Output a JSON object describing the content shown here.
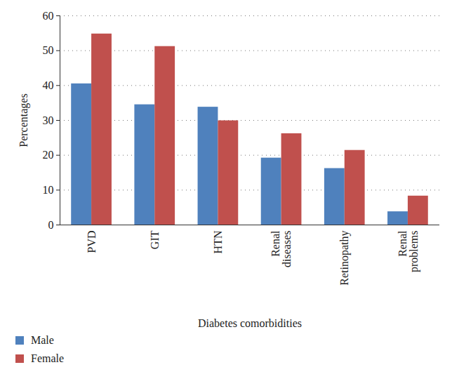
{
  "chart_data": {
    "type": "bar",
    "x_label": "Diabetes comorbidities",
    "y_label": "Percentages",
    "categories": [
      "PVD",
      "GIT",
      "HTN",
      "Renal diseases",
      "Retinopathy",
      "Renal problems"
    ],
    "series": [
      {
        "name": "Male",
        "color": "#4f81bd",
        "values": [
          40.5,
          34.5,
          33.8,
          19.2,
          16.2,
          3.8
        ]
      },
      {
        "name": "Female",
        "color": "#c0504d",
        "values": [
          54.8,
          51.2,
          29.9,
          26.2,
          21.4,
          8.3
        ]
      }
    ],
    "ylim": [
      0,
      60
    ],
    "yticks": [
      0,
      10,
      20,
      30,
      40,
      50,
      60
    ],
    "grid": true,
    "legend": "bottom-left"
  }
}
